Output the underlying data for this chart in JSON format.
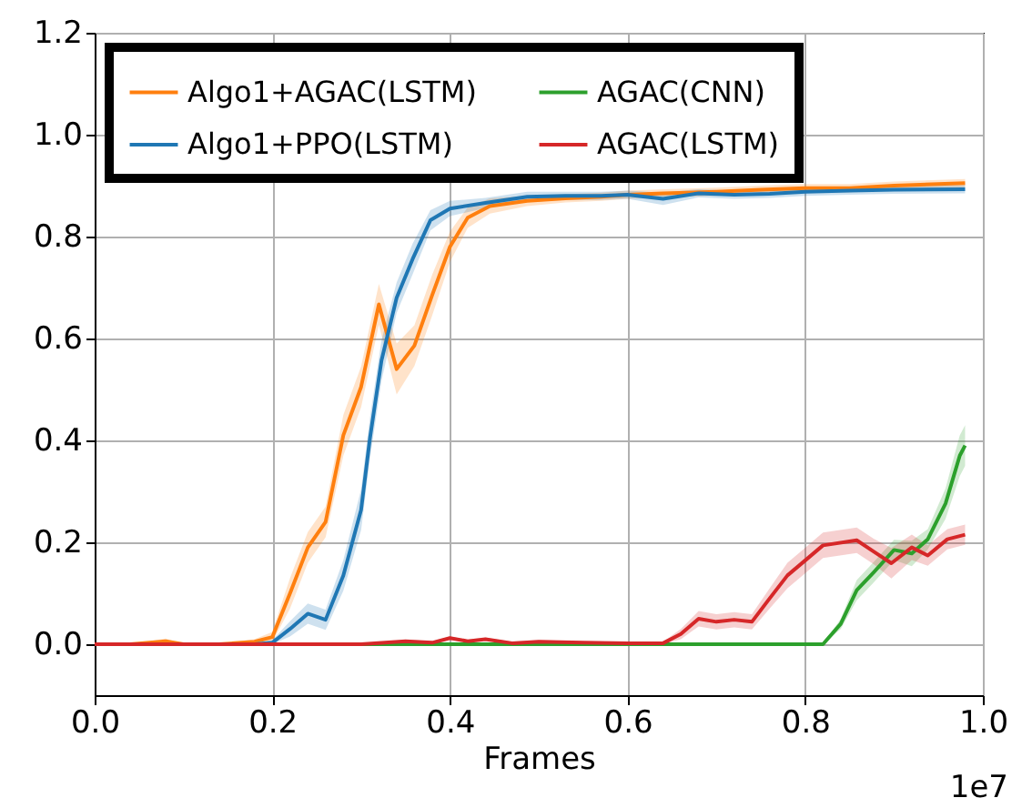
{
  "chart_data": {
    "type": "line",
    "xlabel": "Frames",
    "annotations": [
      "1e7"
    ],
    "xlim": [
      0,
      1.0
    ],
    "ylim": [
      -0.1,
      1.2
    ],
    "xticks": [
      {
        "value": 0,
        "label": "0.0"
      },
      {
        "value": 0.2,
        "label": "0.2"
      },
      {
        "value": 0.4,
        "label": "0.4"
      },
      {
        "value": 0.6,
        "label": "0.6"
      },
      {
        "value": 0.8,
        "label": "0.8"
      },
      {
        "value": 1.0,
        "label": "1.0"
      }
    ],
    "yticks": [
      {
        "value": 0,
        "label": "0.0"
      },
      {
        "value": 0.2,
        "label": "0.2"
      },
      {
        "value": 0.4,
        "label": "0.4"
      },
      {
        "value": 0.6,
        "label": "0.6"
      },
      {
        "value": 0.8,
        "label": "0.8"
      },
      {
        "value": 1.0,
        "label": "1.0"
      },
      {
        "value": 1.2,
        "label": "1.2"
      }
    ],
    "grid": true,
    "legend": "top left",
    "line_style": "solid",
    "series": [
      {
        "name": "Algo1+AGAC(LSTM)",
        "color": "#ff7f0e",
        "x": [
          0,
          0.04,
          0.08,
          0.1,
          0.14,
          0.18,
          0.2,
          0.22,
          0.24,
          0.26,
          0.28,
          0.3,
          0.32,
          0.34,
          0.36,
          0.38,
          0.4,
          0.42,
          0.445,
          0.487,
          0.53,
          0.57,
          0.6,
          0.64,
          0.7,
          0.75,
          0.8,
          0.85,
          0.9,
          0.98
        ],
        "values": [
          0,
          0,
          0.006,
          0,
          0,
          0.005,
          0.014,
          0.1,
          0.19,
          0.24,
          0.41,
          0.505,
          0.667,
          0.54,
          0.586,
          0.685,
          0.78,
          0.837,
          0.86,
          0.87,
          0.875,
          0.878,
          0.882,
          0.885,
          0.888,
          0.892,
          0.895,
          0.895,
          0.9,
          0.905
        ],
        "lower": [
          0,
          0,
          0.001,
          0,
          0,
          0,
          0.004,
          0.07,
          0.16,
          0.21,
          0.37,
          0.465,
          0.627,
          0.49,
          0.546,
          0.645,
          0.75,
          0.817,
          0.845,
          0.86,
          0.867,
          0.87,
          0.874,
          0.877,
          0.88,
          0.884,
          0.887,
          0.887,
          0.892,
          0.897
        ],
        "upper": [
          0,
          0,
          0.011,
          0,
          0,
          0.01,
          0.024,
          0.13,
          0.22,
          0.27,
          0.45,
          0.545,
          0.707,
          0.59,
          0.626,
          0.725,
          0.81,
          0.857,
          0.875,
          0.88,
          0.883,
          0.886,
          0.89,
          0.893,
          0.896,
          0.9,
          0.903,
          0.903,
          0.908,
          0.913
        ]
      },
      {
        "name": "Algo1+PPO(LSTM)",
        "color": "#1f77b4",
        "x": [
          0,
          0.1,
          0.18,
          0.2,
          0.22,
          0.24,
          0.26,
          0.28,
          0.3,
          0.31,
          0.323,
          0.34,
          0.358,
          0.378,
          0.4,
          0.44,
          0.487,
          0.53,
          0.57,
          0.6,
          0.64,
          0.68,
          0.72,
          0.76,
          0.8,
          0.85,
          0.9,
          0.98
        ],
        "values": [
          0,
          0,
          0,
          0.003,
          0.03,
          0.06,
          0.048,
          0.135,
          0.264,
          0.405,
          0.557,
          0.68,
          0.756,
          0.832,
          0.855,
          0.866,
          0.878,
          0.88,
          0.88,
          0.882,
          0.874,
          0.885,
          0.882,
          0.884,
          0.888,
          0.89,
          0.892,
          0.893
        ],
        "lower": [
          0,
          0,
          0,
          0,
          0.015,
          0.04,
          0.028,
          0.105,
          0.224,
          0.365,
          0.517,
          0.65,
          0.726,
          0.812,
          0.84,
          0.856,
          0.868,
          0.872,
          0.872,
          0.874,
          0.862,
          0.877,
          0.874,
          0.876,
          0.88,
          0.882,
          0.884,
          0.885
        ],
        "upper": [
          0,
          0,
          0,
          0.008,
          0.045,
          0.08,
          0.068,
          0.165,
          0.304,
          0.445,
          0.597,
          0.71,
          0.786,
          0.852,
          0.87,
          0.876,
          0.888,
          0.888,
          0.888,
          0.89,
          0.886,
          0.893,
          0.89,
          0.892,
          0.896,
          0.898,
          0.9,
          0.901
        ]
      },
      {
        "name": "AGAC(CNN)",
        "color": "#2ca02c",
        "x": [
          0,
          0.2,
          0.4,
          0.6,
          0.8,
          0.82,
          0.84,
          0.858,
          0.877,
          0.9,
          0.92,
          0.938,
          0.958,
          0.974,
          0.98
        ],
        "values": [
          0,
          0,
          0,
          0,
          0,
          0,
          0.04,
          0.106,
          0.141,
          0.185,
          0.178,
          0.206,
          0.276,
          0.37,
          0.39
        ],
        "lower": [
          0,
          0,
          0,
          0,
          0,
          0,
          0.03,
          0.086,
          0.121,
          0.165,
          0.153,
          0.186,
          0.246,
          0.33,
          0.35
        ],
        "upper": [
          0,
          0,
          0,
          0,
          0,
          0,
          0.05,
          0.126,
          0.161,
          0.205,
          0.203,
          0.226,
          0.306,
          0.41,
          0.43
        ]
      },
      {
        "name": "AGAC(LSTM)",
        "color": "#d62728",
        "x": [
          0,
          0.1,
          0.2,
          0.3,
          0.35,
          0.38,
          0.4,
          0.42,
          0.44,
          0.47,
          0.5,
          0.55,
          0.6,
          0.64,
          0.66,
          0.68,
          0.7,
          0.72,
          0.74,
          0.76,
          0.78,
          0.797,
          0.82,
          0.858,
          0.877,
          0.897,
          0.92,
          0.938,
          0.96,
          0.98
        ],
        "values": [
          0,
          0,
          0,
          0,
          0.006,
          0.003,
          0.012,
          0.006,
          0.01,
          0.002,
          0.005,
          0.003,
          0.002,
          0.002,
          0.02,
          0.05,
          0.044,
          0.048,
          0.044,
          0.09,
          0.135,
          0.16,
          0.194,
          0.204,
          0.182,
          0.159,
          0.19,
          0.174,
          0.206,
          0.215
        ],
        "lower": [
          0,
          0,
          0,
          0,
          0.003,
          0,
          0.009,
          0.003,
          0.007,
          0,
          0.002,
          0,
          0,
          0,
          0.01,
          0.035,
          0.029,
          0.033,
          0.029,
          0.07,
          0.11,
          0.135,
          0.169,
          0.179,
          0.157,
          0.129,
          0.165,
          0.154,
          0.186,
          0.195
        ],
        "upper": [
          0,
          0,
          0,
          0,
          0.009,
          0.006,
          0.015,
          0.009,
          0.013,
          0.005,
          0.008,
          0.006,
          0.005,
          0.005,
          0.03,
          0.065,
          0.059,
          0.063,
          0.059,
          0.11,
          0.16,
          0.185,
          0.219,
          0.229,
          0.207,
          0.189,
          0.215,
          0.194,
          0.226,
          0.235
        ]
      }
    ]
  }
}
